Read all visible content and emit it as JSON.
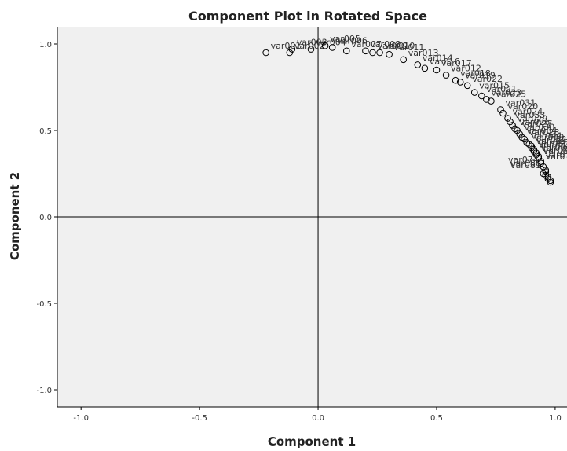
{
  "chart_data": {
    "type": "scatter",
    "title": "Component Plot in Rotated Space",
    "xlabel": "Component 1",
    "ylabel": "Component 2",
    "xlim": [
      -1.1,
      1.05
    ],
    "ylim": [
      -1.1,
      1.1
    ],
    "xticks": [
      "-1.0",
      "-0.5",
      "0.0",
      "0.5",
      "1.0"
    ],
    "yticks": [
      "1.0",
      "0.5",
      "0.0",
      "-0.5",
      "-1.0"
    ],
    "xtick_values": [
      -1.0,
      -0.5,
      0.0,
      0.5,
      1.0
    ],
    "ytick_values": [
      1.0,
      0.5,
      0.0,
      -0.5,
      -1.0
    ],
    "reference_lines": {
      "x": 0,
      "y": 0
    },
    "grid": false,
    "legend": "none",
    "colors": {
      "plot_bg": "#f0f0f0",
      "marker": "#000000",
      "axes": "#000000"
    },
    "points": [
      {
        "label": "var001",
        "x": -0.22,
        "y": 0.95
      },
      {
        "label": "var002",
        "x": -0.12,
        "y": 0.95
      },
      {
        "label": "var003",
        "x": -0.11,
        "y": 0.97
      },
      {
        "label": "var004",
        "x": -0.03,
        "y": 0.97
      },
      {
        "label": "var005",
        "x": 0.03,
        "y": 0.99
      },
      {
        "label": "var006",
        "x": 0.06,
        "y": 0.98
      },
      {
        "label": "var007",
        "x": 0.12,
        "y": 0.96
      },
      {
        "label": "var008",
        "x": 0.2,
        "y": 0.96
      },
      {
        "label": "var009",
        "x": 0.23,
        "y": 0.95
      },
      {
        "label": "var010",
        "x": 0.26,
        "y": 0.95
      },
      {
        "label": "var011",
        "x": 0.3,
        "y": 0.94
      },
      {
        "label": "var013",
        "x": 0.36,
        "y": 0.91
      },
      {
        "label": "var014",
        "x": 0.42,
        "y": 0.88
      },
      {
        "label": "var016",
        "x": 0.45,
        "y": 0.86
      },
      {
        "label": "var017",
        "x": 0.5,
        "y": 0.85
      },
      {
        "label": "var012",
        "x": 0.54,
        "y": 0.82
      },
      {
        "label": "var018",
        "x": 0.58,
        "y": 0.79
      },
      {
        "label": "var019",
        "x": 0.6,
        "y": 0.78
      },
      {
        "label": "var022",
        "x": 0.63,
        "y": 0.76
      },
      {
        "label": "var015",
        "x": 0.66,
        "y": 0.72
      },
      {
        "label": "var021",
        "x": 0.69,
        "y": 0.7
      },
      {
        "label": "var023",
        "x": 0.71,
        "y": 0.68
      },
      {
        "label": "var025",
        "x": 0.73,
        "y": 0.67
      },
      {
        "label": "var031",
        "x": 0.77,
        "y": 0.62
      },
      {
        "label": "var020",
        "x": 0.78,
        "y": 0.6
      },
      {
        "label": "var024",
        "x": 0.8,
        "y": 0.57
      },
      {
        "label": "var033",
        "x": 0.81,
        "y": 0.55
      },
      {
        "label": "var029",
        "x": 0.82,
        "y": 0.53
      },
      {
        "label": "var026",
        "x": 0.83,
        "y": 0.51
      },
      {
        "label": "var027",
        "x": 0.84,
        "y": 0.5
      },
      {
        "label": "var030",
        "x": 0.85,
        "y": 0.48
      },
      {
        "label": "var034",
        "x": 0.86,
        "y": 0.46
      },
      {
        "label": "var028",
        "x": 0.87,
        "y": 0.45
      },
      {
        "label": "var044",
        "x": 0.88,
        "y": 0.43
      },
      {
        "label": "var049",
        "x": 0.89,
        "y": 0.42
      },
      {
        "label": "var032",
        "x": 0.9,
        "y": 0.41
      },
      {
        "label": "var035",
        "x": 0.9,
        "y": 0.4
      },
      {
        "label": "var046",
        "x": 0.91,
        "y": 0.39
      },
      {
        "label": "var042",
        "x": 0.91,
        "y": 0.38
      },
      {
        "label": "var043",
        "x": 0.92,
        "y": 0.37
      },
      {
        "label": "var076",
        "x": 0.92,
        "y": 0.36
      },
      {
        "label": "var07",
        "x": 0.93,
        "y": 0.35
      },
      {
        "label": "var066",
        "x": 0.93,
        "y": 0.34
      },
      {
        "label": "var078",
        "x": 0.94,
        "y": 0.32
      },
      {
        "label": "var077",
        "x": 0.94,
        "y": 0.31
      },
      {
        "label": "var074",
        "x": 0.95,
        "y": 0.29
      },
      {
        "label": "var080",
        "x": 0.96,
        "y": 0.27
      },
      {
        "label": "var081",
        "x": 0.96,
        "y": 0.26
      },
      {
        "label": "",
        "x": 0.95,
        "y": 0.25
      },
      {
        "label": "",
        "x": 0.96,
        "y": 0.24
      },
      {
        "label": "",
        "x": 0.97,
        "y": 0.23
      },
      {
        "label": "",
        "x": 0.97,
        "y": 0.22
      },
      {
        "label": "",
        "x": 0.98,
        "y": 0.21
      },
      {
        "label": "",
        "x": 0.98,
        "y": 0.2
      }
    ]
  }
}
